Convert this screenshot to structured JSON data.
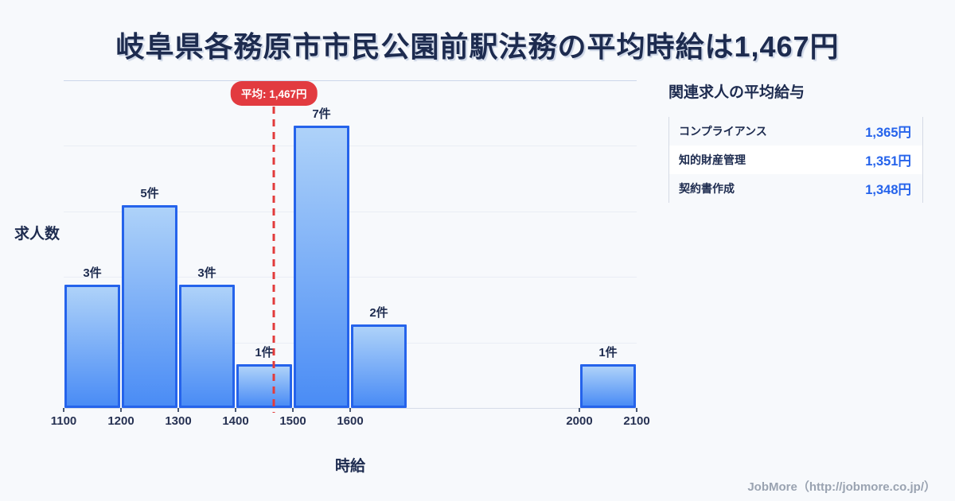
{
  "title": "岐阜県各務原市市民公園前駅法務の平均時給は1,467円",
  "chart_data": {
    "type": "bar",
    "subtype": "histogram",
    "xlabel": "時給",
    "ylabel": "求人数",
    "unit": "件",
    "x_range": [
      1100,
      2100
    ],
    "x_ticks": [
      1100,
      1200,
      1300,
      1400,
      1500,
      1600,
      2000,
      2100
    ],
    "bars": [
      {
        "x0": 1100,
        "x1": 1200,
        "count": 3,
        "label": "3件"
      },
      {
        "x0": 1200,
        "x1": 1300,
        "count": 5,
        "label": "5件"
      },
      {
        "x0": 1300,
        "x1": 1400,
        "count": 3,
        "label": "3件"
      },
      {
        "x0": 1400,
        "x1": 1500,
        "count": 1,
        "label": "1件"
      },
      {
        "x0": 1500,
        "x1": 1600,
        "count": 7,
        "label": "7件"
      },
      {
        "x0": 1600,
        "x1": 1700,
        "count": 2,
        "label": "2件"
      },
      {
        "x0": 2000,
        "x1": 2100,
        "count": 1,
        "label": "1件"
      }
    ],
    "average": {
      "value": 1467,
      "label": "平均: 1,467円"
    },
    "ylim": [
      0,
      8
    ],
    "grid": true,
    "legend": false
  },
  "side_panel": {
    "title": "関連求人の平均給与",
    "rows": [
      {
        "name": "コンプライアンス",
        "value": "1,365円"
      },
      {
        "name": "知的財産管理",
        "value": "1,351円"
      },
      {
        "name": "契約書作成",
        "value": "1,348円"
      }
    ]
  },
  "footer": {
    "credit": "JobMore（http://jobmore.co.jp/）"
  },
  "colors": {
    "background": "#f7f9fc",
    "heading_navy": "#1d2b4f",
    "bar_border_blue": "#2563eb",
    "bar_gradient_top": "#aed2f9",
    "bar_gradient_bottom": "#4a8cf5",
    "average_red": "#e23b3b",
    "value_blue": "#2563eb",
    "footer_gray": "#9aa3b1"
  }
}
